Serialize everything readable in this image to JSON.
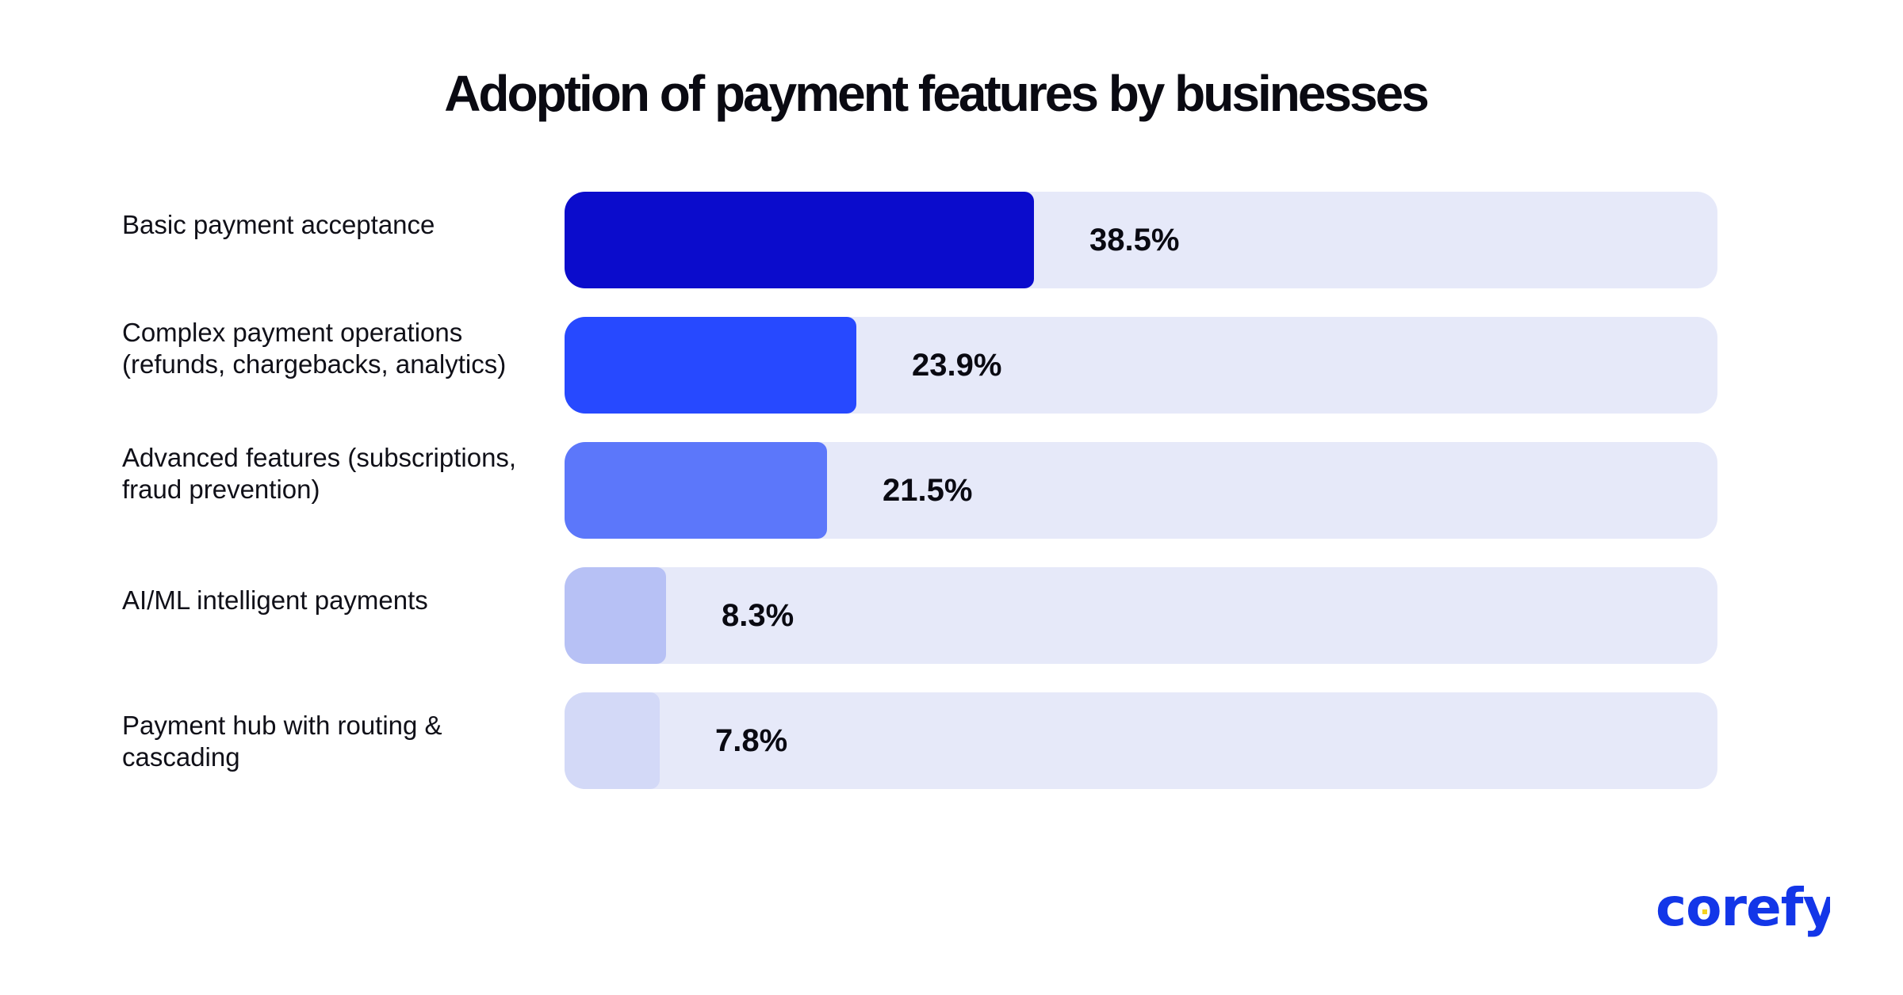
{
  "chart_data": {
    "type": "bar",
    "orientation": "horizontal",
    "title": "Adoption of payment features by businesses",
    "categories": [
      "Basic payment acceptance",
      "Complex payment operations\n(refunds, chargebacks, analytics)",
      "Advanced features (subscriptions,\nfraud prevention)",
      "AI/ML intelligent payments",
      "Payment hub with routing &\ncascading"
    ],
    "values": [
      38.5,
      23.9,
      21.5,
      8.3,
      7.8
    ],
    "value_labels": [
      "38.5%",
      "23.9%",
      "21.5%",
      "8.3%",
      "7.8%"
    ],
    "xlim": [
      0,
      100
    ],
    "unit": "%",
    "colors": [
      "#0b0ccc",
      "#2749ff",
      "#5c77fa",
      "#b7c1f5",
      "#d3d9f7"
    ],
    "track_color": "#e6e9f9",
    "grid": false,
    "legend": "none"
  },
  "brand": {
    "logo_text": "corefy",
    "color": "#1336e8",
    "dot_color": "#f5d21e"
  }
}
